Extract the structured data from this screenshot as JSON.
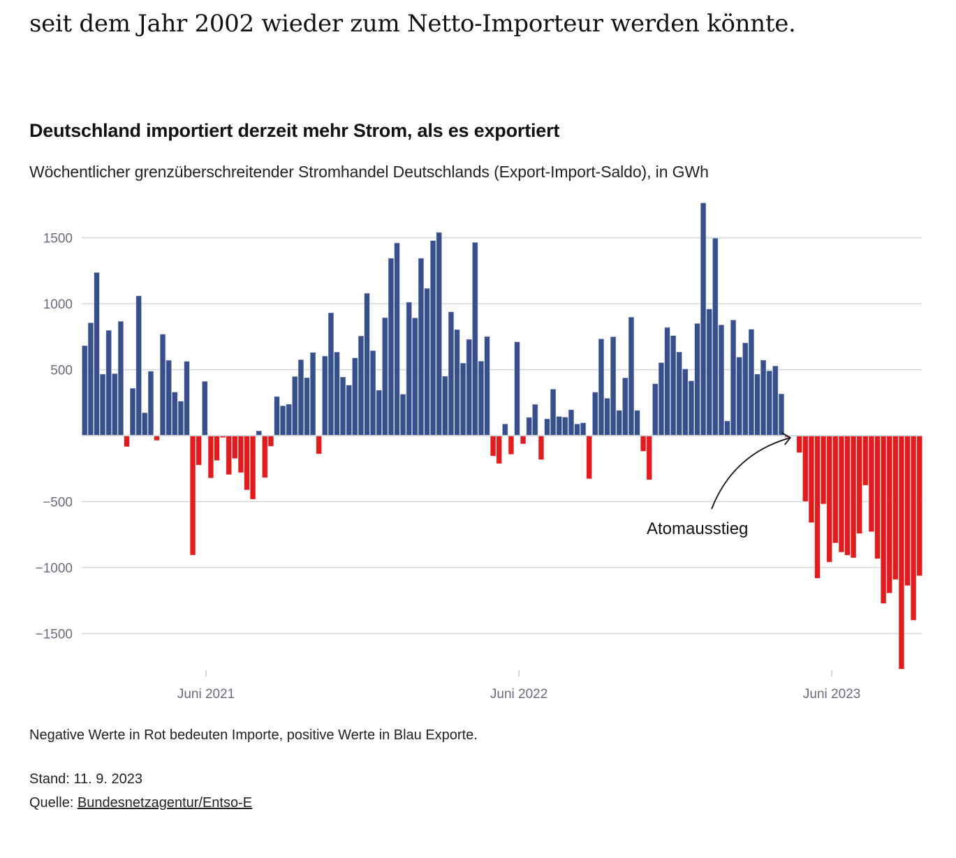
{
  "article": {
    "lead_text": "seit dem Jahr 2002 wieder zum Netto-Importeur werden könnte."
  },
  "colors": {
    "export": "#37508c",
    "import": "#e21b1e",
    "grid": "#d3d5db",
    "axis_text": "#6b6b7b"
  },
  "chart_data": {
    "type": "bar",
    "title": "Deutschland importiert derzeit mehr Strom, als es exportiert",
    "subtitle": "Wöchentlicher grenzüberschreitender Stromhandel Deutschlands (Export-Import-Saldo), in GWh",
    "xlabel": "",
    "ylabel": "",
    "unit": "GWh",
    "ylim": [
      -1800,
      1800
    ],
    "yticks": [
      1500,
      1000,
      500,
      -500,
      -1000,
      -1500
    ],
    "ytick_labels": [
      "1500",
      "1000",
      "500",
      "−500",
      "−1000",
      "−1500"
    ],
    "grid": true,
    "xticks": [
      {
        "index": 20.2,
        "label": "Juni 2021"
      },
      {
        "index": 72.3,
        "label": "Juni 2022"
      },
      {
        "index": 124.4,
        "label": "Juni 2023"
      }
    ],
    "annotation": {
      "label": "Atomausstieg",
      "index": 117
    },
    "series": [
      {
        "name": "Export-Import-Saldo",
        "positive_label": "Exporte",
        "negative_label": "Importe",
        "values": [
          682,
          855,
          1236,
          466,
          798,
          470,
          866,
          -84,
          359,
          1059,
          173,
          488,
          -36,
          768,
          571,
          330,
          261,
          563,
          -905,
          -223,
          411,
          -321,
          -188,
          -14,
          -295,
          -173,
          -280,
          -411,
          -482,
          36,
          -318,
          -80,
          296,
          226,
          238,
          448,
          575,
          439,
          630,
          -138,
          603,
          931,
          633,
          444,
          383,
          589,
          755,
          1079,
          644,
          344,
          894,
          1344,
          1460,
          314,
          1011,
          892,
          1344,
          1116,
          1478,
          1540,
          450,
          938,
          804,
          550,
          730,
          1464,
          564,
          751,
          -154,
          -212,
          88,
          -141,
          710,
          -62,
          138,
          237,
          -182,
          127,
          352,
          145,
          140,
          196,
          88,
          97,
          -327,
          329,
          733,
          283,
          749,
          191,
          438,
          898,
          191,
          -118,
          -334,
          393,
          553,
          820,
          758,
          634,
          505,
          415,
          850,
          1763,
          959,
          1496,
          839,
          111,
          876,
          595,
          703,
          806,
          466,
          572,
          491,
          528,
          316,
          -12,
          -3,
          -129,
          -498,
          -659,
          -1081,
          -518,
          -958,
          -813,
          -883,
          -906,
          -926,
          -742,
          -376,
          -728,
          -933,
          -1272,
          -1193,
          -1090,
          -1769,
          -1136,
          -1399,
          -1062
        ]
      }
    ]
  },
  "footer": {
    "note": "Negative Werte in Rot bedeuten Importe, positive Werte in Blau Exporte.",
    "stand": "Stand: 11. 9. 2023",
    "source_prefix": "Quelle: ",
    "source_link": "Bundesnetzagentur/Entso-E"
  }
}
